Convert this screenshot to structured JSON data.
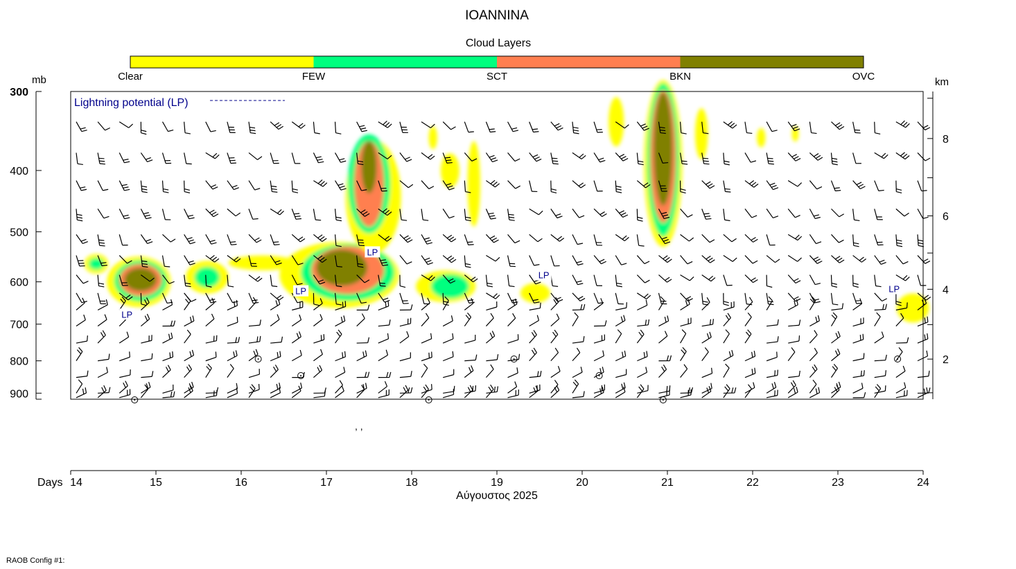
{
  "title": "IOANNINA",
  "footer_note": "RAOB Config #1:",
  "colors": {
    "axis": "#000000",
    "lp_text": "#00008b",
    "few": "#ffff00",
    "sct": "#00ff7f",
    "bkn": "#ff7f50",
    "ovc": "#808000"
  },
  "chart_data": {
    "type": "heatmap",
    "title": "IOANNINA",
    "legend": {
      "title": "Cloud Layers",
      "placement": "top",
      "categories": [
        {
          "name": "Clear",
          "color": "#ffffff"
        },
        {
          "name": "FEW",
          "color": "#ffff00"
        },
        {
          "name": "SCT",
          "color": "#00ff7f"
        },
        {
          "name": "BKN",
          "color": "#ff7f50"
        },
        {
          "name": "OVC",
          "color": "#808000"
        }
      ]
    },
    "y_left": {
      "label": "mb",
      "scale": "log",
      "range": [
        920,
        300
      ],
      "ticks": [
        300,
        400,
        500,
        600,
        700,
        800,
        900
      ]
    },
    "y_right": {
      "label": "km",
      "ticks": [
        2,
        4,
        6,
        8
      ]
    },
    "x": {
      "label": "Days",
      "sublabel": "Αύγουστος 2025",
      "range": [
        14,
        24
      ],
      "ticks": [
        14,
        15,
        16,
        17,
        18,
        19,
        20,
        21,
        22,
        23,
        24
      ]
    },
    "lightning_legend": "Lightning potential (LP)",
    "lp_label": "LP",
    "lp_markers": [
      {
        "day": 14.66,
        "p": 675
      },
      {
        "day": 16.7,
        "p": 620
      },
      {
        "day": 17.54,
        "p": 538
      },
      {
        "day": 19.55,
        "p": 585
      },
      {
        "day": 23.66,
        "p": 615
      }
    ],
    "cloud_regions": [
      {
        "cls": "few",
        "day": 14.3,
        "p": 562,
        "w": 0.28,
        "h": 40
      },
      {
        "cls": "sct",
        "day": 14.3,
        "p": 562,
        "w": 0.18,
        "h": 25
      },
      {
        "cls": "few",
        "day": 14.8,
        "p": 600,
        "w": 0.75,
        "h": 110
      },
      {
        "cls": "sct",
        "day": 14.82,
        "p": 598,
        "w": 0.62,
        "h": 90
      },
      {
        "cls": "bkn",
        "day": 14.82,
        "p": 596,
        "w": 0.5,
        "h": 70
      },
      {
        "cls": "ovc",
        "day": 14.82,
        "p": 595,
        "w": 0.38,
        "h": 50
      },
      {
        "cls": "few",
        "day": 15.6,
        "p": 590,
        "w": 0.5,
        "h": 70
      },
      {
        "cls": "sct",
        "day": 15.6,
        "p": 590,
        "w": 0.3,
        "h": 45
      },
      {
        "cls": "few",
        "day": 16.25,
        "p": 560,
        "w": 0.8,
        "h": 30
      },
      {
        "cls": "few",
        "day": 17.15,
        "p": 585,
        "w": 1.4,
        "h": 140
      },
      {
        "cls": "sct",
        "day": 17.25,
        "p": 580,
        "w": 1.1,
        "h": 120
      },
      {
        "cls": "bkn",
        "day": 17.25,
        "p": 575,
        "w": 0.85,
        "h": 100
      },
      {
        "cls": "ovc",
        "day": 17.18,
        "p": 570,
        "w": 0.6,
        "h": 75
      },
      {
        "cls": "few",
        "day": 17.55,
        "p": 440,
        "w": 0.65,
        "h": 180
      },
      {
        "cls": "sct",
        "day": 17.5,
        "p": 420,
        "w": 0.5,
        "h": 150
      },
      {
        "cls": "bkn",
        "day": 17.5,
        "p": 420,
        "w": 0.35,
        "h": 130
      },
      {
        "cls": "ovc",
        "day": 17.5,
        "p": 395,
        "w": 0.18,
        "h": 75
      },
      {
        "cls": "few",
        "day": 18.4,
        "p": 610,
        "w": 0.7,
        "h": 70
      },
      {
        "cls": "sct",
        "day": 18.45,
        "p": 610,
        "w": 0.45,
        "h": 55
      },
      {
        "cls": "few",
        "day": 18.73,
        "p": 420,
        "w": 0.15,
        "h": 130
      },
      {
        "cls": "few",
        "day": 18.45,
        "p": 400,
        "w": 0.22,
        "h": 50
      },
      {
        "cls": "few",
        "day": 18.25,
        "p": 355,
        "w": 0.1,
        "h": 30
      },
      {
        "cls": "few",
        "day": 19.45,
        "p": 625,
        "w": 0.35,
        "h": 45
      },
      {
        "cls": "few",
        "day": 20.4,
        "p": 335,
        "w": 0.18,
        "h": 60
      },
      {
        "cls": "few",
        "day": 20.95,
        "p": 390,
        "w": 0.45,
        "h": 230
      },
      {
        "cls": "sct",
        "day": 20.95,
        "p": 385,
        "w": 0.38,
        "h": 210
      },
      {
        "cls": "bkn",
        "day": 20.95,
        "p": 380,
        "w": 0.3,
        "h": 180
      },
      {
        "cls": "ovc",
        "day": 20.95,
        "p": 370,
        "w": 0.22,
        "h": 150
      },
      {
        "cls": "few",
        "day": 21.4,
        "p": 350,
        "w": 0.15,
        "h": 65
      },
      {
        "cls": "few",
        "day": 22.1,
        "p": 355,
        "w": 0.1,
        "h": 25
      },
      {
        "cls": "few",
        "day": 22.5,
        "p": 350,
        "w": 0.08,
        "h": 20
      },
      {
        "cls": "few",
        "day": 23.88,
        "p": 660,
        "w": 0.38,
        "h": 70
      }
    ],
    "sfc_circles": [
      14.75,
      16.2,
      16.7,
      18.2,
      19.2,
      20.2,
      20.95,
      23.7
    ],
    "grid": false
  }
}
